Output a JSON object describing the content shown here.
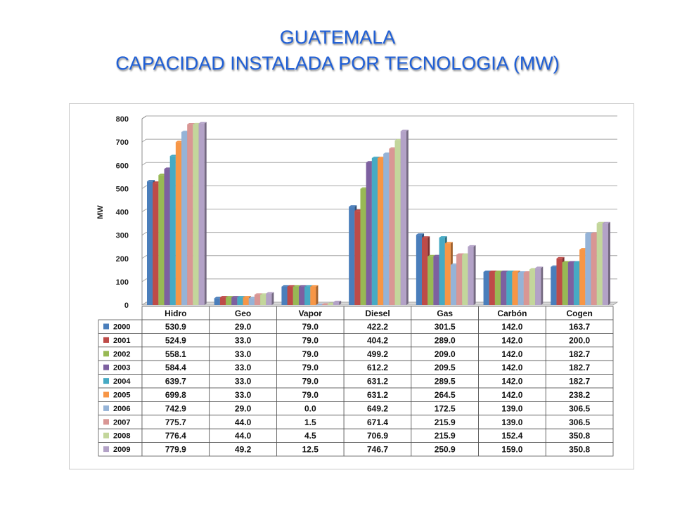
{
  "slide": {
    "title_line1": "GUATEMALA",
    "title_line2": "CAPACIDAD INSTALADA POR TECNOLOGIA (MW)"
  },
  "chart_data": {
    "type": "bar",
    "title": "",
    "xlabel": "",
    "ylabel": "MW",
    "ylim": [
      0,
      800
    ],
    "yticks": [
      0,
      100,
      200,
      300,
      400,
      500,
      600,
      700,
      800
    ],
    "grid": true,
    "legend": "data table below chart",
    "categories": [
      "Hidro",
      "Geo",
      "Vapor",
      "Diesel",
      "Gas",
      "Carbón",
      "Cogen"
    ],
    "series": [
      {
        "name": "2000",
        "color": "#4a7ebb",
        "values": [
          530.9,
          29.0,
          79.0,
          422.2,
          301.5,
          142.0,
          163.7
        ],
        "labels": [
          "530.9",
          "29.0",
          "79.0",
          "422.2",
          "301.5",
          "142.0",
          "163.7"
        ]
      },
      {
        "name": "2001",
        "color": "#be4b48",
        "values": [
          524.9,
          33.0,
          79.0,
          404.2,
          289.0,
          142.0,
          200.0
        ],
        "labels": [
          "524.9",
          "33.0",
          "79.0",
          "404.2",
          "289.0",
          "142.0",
          "200.0"
        ]
      },
      {
        "name": "2002",
        "color": "#98b954",
        "values": [
          558.1,
          33.0,
          79.0,
          499.2,
          209.0,
          142.0,
          182.7
        ],
        "labels": [
          "558.1",
          "33.0",
          "79.0",
          "499.2",
          "209.0",
          "142.0",
          "182.7"
        ]
      },
      {
        "name": "2003",
        "color": "#7d60a0",
        "values": [
          584.4,
          33.0,
          79.0,
          612.2,
          209.5,
          142.0,
          182.7
        ],
        "labels": [
          "584.4",
          "33.0",
          "79.0",
          "612.2",
          "209.5",
          "142.0",
          "182.7"
        ]
      },
      {
        "name": "2004",
        "color": "#46aac4",
        "values": [
          639.7,
          33.0,
          79.0,
          631.2,
          289.5,
          142.0,
          182.7
        ],
        "labels": [
          "639.7",
          "33.0",
          "79.0",
          "631.2",
          "289.5",
          "142.0",
          "182.7"
        ]
      },
      {
        "name": "2005",
        "color": "#f79646",
        "values": [
          699.8,
          33.0,
          79.0,
          631.2,
          264.5,
          142.0,
          238.2
        ],
        "labels": [
          "699.8",
          "33.0",
          "79.0",
          "631.2",
          "264.5",
          "142.0",
          "238.2"
        ]
      },
      {
        "name": "2006",
        "color": "#95b3d7",
        "values": [
          742.9,
          29.0,
          0.0,
          649.2,
          172.5,
          139.0,
          306.5
        ],
        "labels": [
          "742.9",
          "29.0",
          "0.0",
          "649.2",
          "172.5",
          "139.0",
          "306.5"
        ]
      },
      {
        "name": "2007",
        "color": "#d99694",
        "values": [
          775.7,
          44.0,
          1.5,
          671.4,
          215.9,
          139.0,
          306.5
        ],
        "labels": [
          "775.7",
          "44.0",
          "1.5",
          "671.4",
          "215.9",
          "139.0",
          "306.5"
        ]
      },
      {
        "name": "2008",
        "color": "#c3d69b",
        "values": [
          776.4,
          44.0,
          4.5,
          706.9,
          215.9,
          152.4,
          350.8
        ],
        "labels": [
          "776.4",
          "44.0",
          "4.5",
          "706.9",
          "215.9",
          "152.4",
          "350.8"
        ]
      },
      {
        "name": "2009",
        "color": "#b3a2c7",
        "values": [
          779.9,
          49.2,
          12.5,
          746.7,
          250.9,
          159.0,
          350.8
        ],
        "labels": [
          "779.9",
          "49.2",
          "12.5",
          "746.7",
          "250.9",
          "159.0",
          "350.8"
        ]
      }
    ]
  }
}
